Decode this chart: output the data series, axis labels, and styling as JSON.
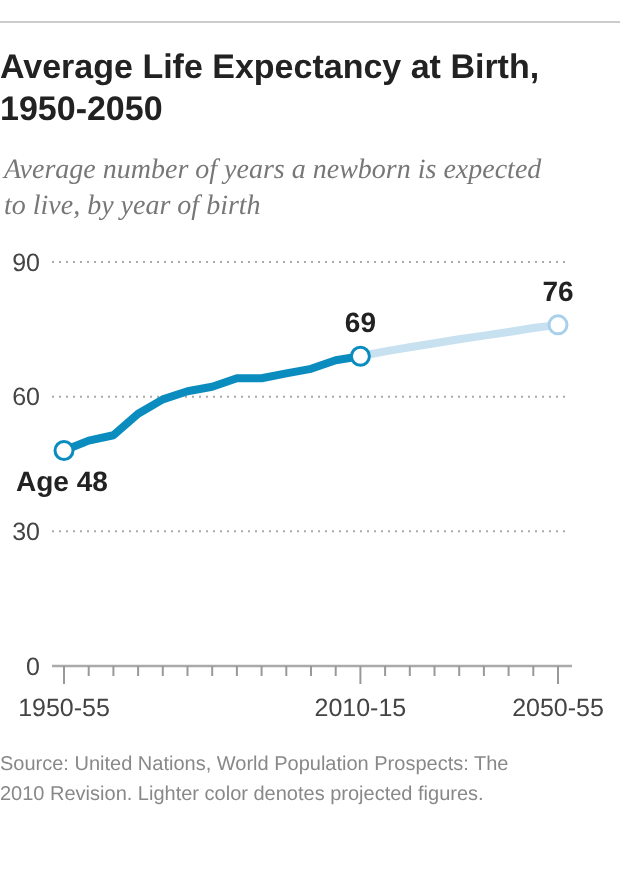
{
  "chart_data": {
    "type": "line",
    "title": "Average Life Expectancy at Birth, 1950-2050",
    "subtitle": "Average number of years a newborn is expected to live, by year of birth",
    "categories": [
      "1950-55",
      null,
      null,
      null,
      null,
      null,
      null,
      null,
      null,
      null,
      null,
      null,
      "2010-15",
      null,
      null,
      null,
      null,
      null,
      null,
      null,
      "2050-55"
    ],
    "series": [
      {
        "color": "#0b8cbf",
        "values": [
          48,
          50.2,
          51.4,
          56.2,
          59.4,
          61.2,
          62.2,
          64.1,
          64.1,
          65.2,
          66.2,
          68.1,
          69,
          null,
          null,
          null,
          null,
          null,
          null,
          null,
          null
        ],
        "value_labels": [
          "Age 48",
          null,
          null,
          null,
          null,
          null,
          null,
          null,
          null,
          null,
          null,
          null,
          "69",
          null,
          null,
          null,
          null,
          null,
          null,
          null,
          null
        ]
      },
      {
        "color": "#c8e1f0",
        "values": [
          null,
          null,
          null,
          null,
          null,
          null,
          null,
          null,
          null,
          null,
          null,
          null,
          69,
          70.1,
          71,
          71.9,
          72.8,
          73.6,
          74.4,
          75.3,
          76
        ],
        "value_labels": [
          null,
          null,
          null,
          null,
          null,
          null,
          null,
          null,
          null,
          null,
          null,
          null,
          null,
          null,
          null,
          null,
          null,
          null,
          null,
          null,
          "76"
        ]
      }
    ],
    "ylim": [
      0,
      90
    ],
    "yticks": [
      0,
      30,
      60,
      90
    ],
    "grid": "y",
    "marker": "none",
    "line_style": "solid",
    "annotations": [
      "Source: United Nations, World Population Prospects: The 2010 Revision. Lighter color denotes projected figures."
    ]
  }
}
